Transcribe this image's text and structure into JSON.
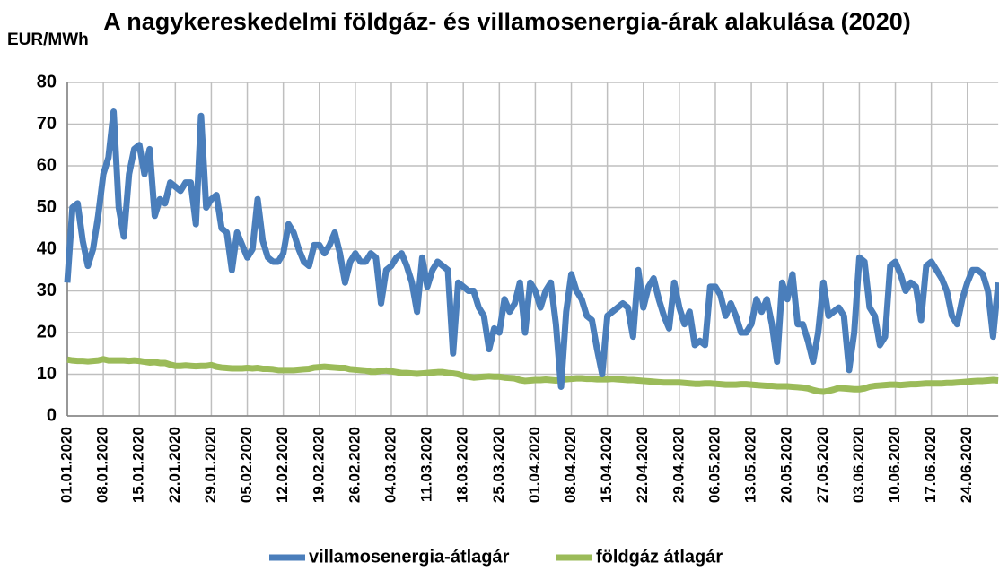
{
  "chart_data": {
    "type": "line",
    "title": "A nagykereskedelmi földgáz- és villamosenergia-árak alakulása (2020)",
    "y_label": "EUR/MWh",
    "categories": [
      "01.01.2020",
      null,
      null,
      null,
      null,
      null,
      null,
      "08.01.2020",
      null,
      null,
      null,
      null,
      null,
      null,
      "15.01.2020",
      null,
      null,
      null,
      null,
      null,
      null,
      "22.01.2020",
      null,
      null,
      null,
      null,
      null,
      null,
      "29.01.2020",
      null,
      null,
      null,
      null,
      null,
      null,
      "05.02.2020",
      null,
      null,
      null,
      null,
      null,
      null,
      "12.02.2020",
      null,
      null,
      null,
      null,
      null,
      null,
      "19.02.2020",
      null,
      null,
      null,
      null,
      null,
      null,
      "26.02.2020",
      null,
      null,
      null,
      null,
      null,
      null,
      "04.03.2020",
      null,
      null,
      null,
      null,
      null,
      null,
      "11.03.2020",
      null,
      null,
      null,
      null,
      null,
      null,
      "18.03.2020",
      null,
      null,
      null,
      null,
      null,
      null,
      "25.03.2020",
      null,
      null,
      null,
      null,
      null,
      null,
      "01.04.2020",
      null,
      null,
      null,
      null,
      null,
      null,
      "08.04.2020",
      null,
      null,
      null,
      null,
      null,
      null,
      "15.04.2020",
      null,
      null,
      null,
      null,
      null,
      null,
      "22.04.2020",
      null,
      null,
      null,
      null,
      null,
      null,
      "29.04.2020",
      null,
      null,
      null,
      null,
      null,
      null,
      "06.05.2020",
      null,
      null,
      null,
      null,
      null,
      null,
      "13.05.2020",
      null,
      null,
      null,
      null,
      null,
      null,
      "20.05.2020",
      null,
      null,
      null,
      null,
      null,
      null,
      "27.05.2020",
      null,
      null,
      null,
      null,
      null,
      null,
      "03.06.2020",
      null,
      null,
      null,
      null,
      null,
      null,
      "10.06.2020",
      null,
      null,
      null,
      null,
      null,
      null,
      "17.06.2020",
      null,
      null,
      null,
      null,
      null,
      null,
      "24.06.2020",
      null,
      null,
      null,
      null,
      null,
      null
    ],
    "series": [
      {
        "name": "villamosenergia-átlagár",
        "color": "#4a7ebb",
        "values": [
          32,
          50,
          51,
          42,
          36,
          40,
          48,
          58,
          62,
          73,
          50,
          43,
          58,
          64,
          65,
          58,
          64,
          48,
          52,
          51,
          56,
          55,
          54,
          56,
          56,
          46,
          72,
          50,
          52,
          53,
          45,
          44,
          35,
          44,
          41,
          38,
          40,
          52,
          42,
          38,
          37,
          37,
          39,
          46,
          44,
          40,
          37,
          36,
          41,
          41,
          39,
          41,
          44,
          39,
          32,
          37,
          39,
          37,
          37,
          39,
          38,
          27,
          35,
          36,
          38,
          39,
          36,
          32,
          25,
          38,
          31,
          35,
          37,
          36,
          35,
          15,
          32,
          31,
          30,
          30,
          26,
          24,
          16,
          21,
          20,
          28,
          25,
          27,
          32,
          20,
          32,
          30,
          26,
          30,
          32,
          22,
          7,
          25,
          34,
          30,
          28,
          24,
          23,
          16,
          10,
          24,
          25,
          26,
          27,
          26,
          19,
          35,
          26,
          31,
          33,
          28,
          24,
          21,
          32,
          26,
          22,
          25,
          17,
          18,
          17,
          31,
          31,
          29,
          24,
          27,
          24,
          20,
          20,
          22,
          28,
          25,
          28,
          22,
          13,
          32,
          28,
          34,
          22,
          22,
          18,
          13,
          20,
          32,
          24,
          25,
          26,
          24,
          11,
          20,
          38,
          37,
          26,
          24,
          17,
          19,
          36,
          37,
          34,
          30,
          32,
          31,
          23,
          36,
          37,
          35,
          33,
          30,
          24,
          22,
          28,
          32,
          35,
          35,
          34,
          30,
          19,
          32
        ]
      },
      {
        "name": "földgáz átlagár",
        "color": "#9bbb59",
        "values": [
          13.5,
          13.3,
          13.2,
          13.2,
          13.1,
          13.2,
          13.3,
          13.6,
          13.3,
          13.3,
          13.3,
          13.3,
          13.2,
          13.3,
          13.2,
          13,
          12.8,
          12.9,
          12.7,
          12.7,
          12.3,
          12,
          12,
          12.1,
          12,
          11.9,
          12,
          12,
          12.2,
          11.8,
          11.6,
          11.5,
          11.4,
          11.4,
          11.4,
          11.5,
          11.4,
          11.5,
          11.3,
          11.3,
          11.2,
          11,
          11,
          11,
          11,
          11.1,
          11.2,
          11.3,
          11.6,
          11.7,
          11.8,
          11.7,
          11.6,
          11.5,
          11.5,
          11.2,
          11.1,
          11,
          10.9,
          10.6,
          10.6,
          10.8,
          10.9,
          10.7,
          10.5,
          10.3,
          10.3,
          10.2,
          10.1,
          10.2,
          10.3,
          10.4,
          10.5,
          10.5,
          10.3,
          10.2,
          10,
          9.6,
          9.4,
          9.2,
          9.3,
          9.4,
          9.5,
          9.4,
          9.4,
          9.2,
          9.1,
          9,
          8.6,
          8.4,
          8.5,
          8.6,
          8.6,
          8.7,
          8.6,
          8.5,
          8.6,
          8.8,
          8.9,
          9,
          9,
          8.9,
          8.9,
          8.8,
          8.8,
          8.8,
          8.9,
          8.8,
          8.7,
          8.6,
          8.6,
          8.5,
          8.4,
          8.3,
          8.2,
          8.1,
          8,
          8,
          8,
          8,
          7.9,
          7.8,
          7.7,
          7.7,
          7.8,
          7.8,
          7.7,
          7.6,
          7.5,
          7.5,
          7.5,
          7.6,
          7.6,
          7.5,
          7.4,
          7.3,
          7.2,
          7.2,
          7.1,
          7.1,
          7.1,
          7,
          6.9,
          6.8,
          6.6,
          6.2,
          5.9,
          5.8,
          6,
          6.3,
          6.7,
          6.6,
          6.5,
          6.4,
          6.4,
          6.6,
          7,
          7.2,
          7.3,
          7.4,
          7.5,
          7.5,
          7.4,
          7.5,
          7.6,
          7.6,
          7.7,
          7.8,
          7.8,
          7.8,
          7.8,
          7.9,
          7.9,
          8,
          8.1,
          8.2,
          8.3,
          8.4,
          8.4,
          8.5,
          8.6,
          8.5
        ]
      }
    ],
    "ylim": [
      0,
      80
    ],
    "yticks": [
      0,
      10,
      20,
      30,
      40,
      50,
      60,
      70,
      80
    ],
    "grid": true,
    "legend": "bottom"
  }
}
